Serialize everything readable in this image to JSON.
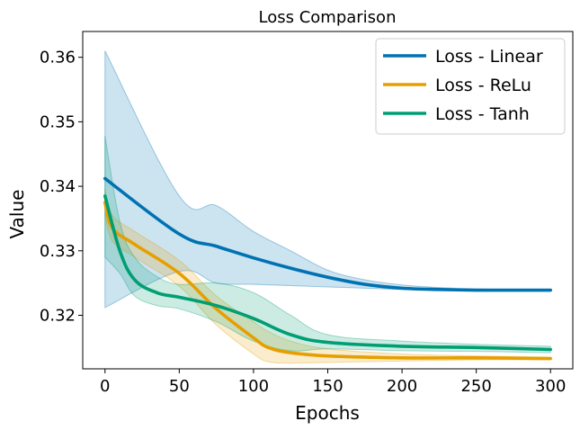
{
  "chart_data": {
    "type": "line",
    "title": "Loss Comparison",
    "xlabel": "Epochs",
    "ylabel": "Value",
    "xlim": [
      -15,
      315
    ],
    "ylim": [
      0.3117,
      0.364
    ],
    "xticks": [
      0,
      50,
      100,
      150,
      200,
      250,
      300
    ],
    "yticks": [
      0.32,
      0.33,
      0.34,
      0.35,
      0.36
    ],
    "ytick_labels": [
      "0.32",
      "0.33",
      "0.34",
      "0.35",
      "0.36"
    ],
    "grid": false,
    "legend_position": "top-right",
    "series": [
      {
        "name": "Loss - Linear",
        "color": "#0072B2",
        "x": [
          0,
          50,
          75,
          100,
          125,
          150,
          175,
          200,
          225,
          250,
          275,
          300
        ],
        "y": [
          0.3412,
          0.3326,
          0.3307,
          0.3289,
          0.3273,
          0.3259,
          0.3248,
          0.3242,
          0.324,
          0.3239,
          0.3239,
          0.3239
        ],
        "upper": [
          0.361,
          0.3385,
          0.337,
          0.333,
          0.33,
          0.327,
          0.3255,
          0.3247,
          0.3243,
          0.3241,
          0.324,
          0.324
        ],
        "lower": [
          0.3212,
          0.3268,
          0.325,
          0.3248,
          0.3246,
          0.3244,
          0.3242,
          0.324,
          0.3239,
          0.3238,
          0.3238,
          0.3238
        ]
      },
      {
        "name": "Loss - ReLu",
        "color": "#E69F00",
        "x": [
          0,
          5,
          20,
          50,
          75,
          100,
          110,
          125,
          150,
          200,
          250,
          300
        ],
        "y": [
          0.3375,
          0.3335,
          0.331,
          0.3265,
          0.321,
          0.3165,
          0.315,
          0.3142,
          0.3137,
          0.3134,
          0.3134,
          0.3133
        ],
        "upper": [
          0.3395,
          0.3355,
          0.333,
          0.3285,
          0.323,
          0.319,
          0.3175,
          0.316,
          0.3148,
          0.314,
          0.3137,
          0.3135
        ],
        "lower": [
          0.3355,
          0.3315,
          0.329,
          0.3245,
          0.3185,
          0.314,
          0.3128,
          0.3126,
          0.3127,
          0.3129,
          0.3131,
          0.3131
        ]
      },
      {
        "name": "Loss - Tanh",
        "color": "#009E73",
        "x": [
          0,
          10,
          20,
          35,
          50,
          75,
          100,
          125,
          150,
          200,
          250,
          300
        ],
        "y": [
          0.3385,
          0.33,
          0.3255,
          0.3235,
          0.3228,
          0.3215,
          0.3195,
          0.317,
          0.3158,
          0.3152,
          0.315,
          0.3147
        ],
        "upper": [
          0.3478,
          0.3345,
          0.329,
          0.326,
          0.3248,
          0.325,
          0.3235,
          0.32,
          0.317,
          0.316,
          0.3155,
          0.3152
        ],
        "lower": [
          0.329,
          0.3265,
          0.323,
          0.3215,
          0.321,
          0.319,
          0.316,
          0.3145,
          0.3148,
          0.3145,
          0.3144,
          0.3142
        ]
      }
    ]
  }
}
